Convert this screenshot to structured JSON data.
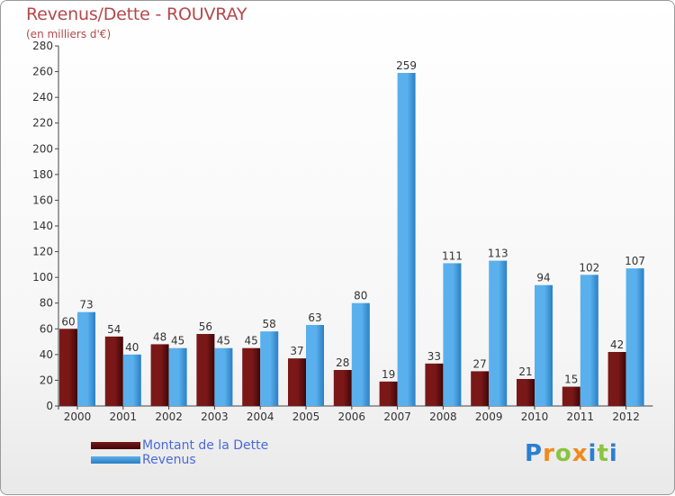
{
  "title": "Revenus/Dette - ROUVRAY",
  "subtitle": "(en milliers d'€)",
  "colors": {
    "dette": "#7a1818",
    "dette_dark": "#3f0606",
    "revenus": "#5ab0ec",
    "revenus_dark": "#2b7fc4",
    "title": "#b5484a",
    "legend_text": "#4a6ad8"
  },
  "legend": [
    {
      "label": "Montant de la Dette"
    },
    {
      "label": "Revenus"
    }
  ],
  "logo": {
    "text": "Proxiti"
  },
  "chart_data": {
    "type": "bar",
    "title": "Revenus/Dette - ROUVRAY",
    "ylabel": "(en milliers d'€)",
    "xlabel": "",
    "ylim": [
      0,
      280
    ],
    "yticks": [
      0,
      20,
      40,
      60,
      80,
      100,
      120,
      140,
      160,
      180,
      200,
      220,
      240,
      260,
      280
    ],
    "grid": false,
    "legend_position": "bottom-left",
    "categories": [
      "2000",
      "2001",
      "2002",
      "2003",
      "2004",
      "2005",
      "2006",
      "2007",
      "2008",
      "2009",
      "2010",
      "2011",
      "2012"
    ],
    "series": [
      {
        "name": "Montant de la Dette",
        "values": [
          60,
          54,
          48,
          56,
          45,
          37,
          28,
          19,
          33,
          27,
          21,
          15,
          42
        ]
      },
      {
        "name": "Revenus",
        "values": [
          73,
          40,
          45,
          45,
          58,
          63,
          80,
          259,
          111,
          113,
          94,
          102,
          107
        ]
      }
    ]
  }
}
